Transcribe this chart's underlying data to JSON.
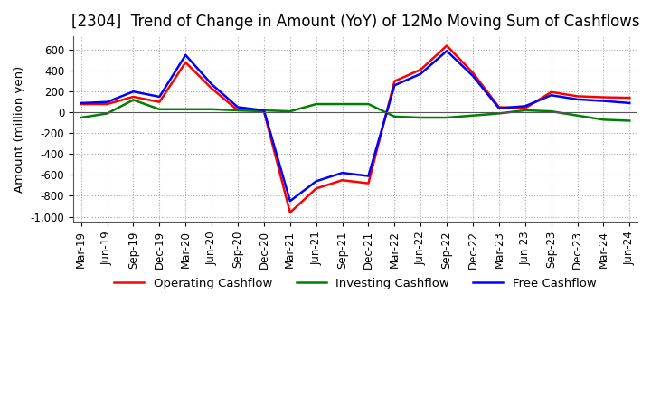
{
  "title": "[2304]  Trend of Change in Amount (YoY) of 12Mo Moving Sum of Cashflows",
  "ylabel": "Amount (million yen)",
  "xlabels": [
    "Mar-19",
    "Jun-19",
    "Sep-19",
    "Dec-19",
    "Mar-20",
    "Jun-20",
    "Sep-20",
    "Dec-20",
    "Mar-21",
    "Jun-21",
    "Sep-21",
    "Dec-21",
    "Mar-22",
    "Jun-22",
    "Sep-22",
    "Dec-22",
    "Mar-23",
    "Jun-23",
    "Sep-23",
    "Dec-23",
    "Mar-24",
    "Jun-24"
  ],
  "operating_cashflow": [
    80,
    80,
    150,
    100,
    480,
    230,
    20,
    10,
    -960,
    -730,
    -650,
    -680,
    300,
    410,
    640,
    380,
    50,
    40,
    195,
    155,
    145,
    140
  ],
  "investing_cashflow": [
    -50,
    -10,
    120,
    30,
    30,
    30,
    20,
    20,
    10,
    80,
    80,
    80,
    -40,
    -50,
    -50,
    -30,
    -10,
    20,
    10,
    -30,
    -70,
    -80
  ],
  "free_cashflow": [
    90,
    100,
    200,
    150,
    550,
    270,
    50,
    20,
    -850,
    -660,
    -580,
    -610,
    260,
    370,
    590,
    350,
    40,
    60,
    165,
    125,
    110,
    90
  ],
  "ylim": [
    -1050,
    730
  ],
  "yticks": [
    -1000,
    -800,
    -600,
    -400,
    -200,
    0,
    200,
    400,
    600
  ],
  "operating_color": "#ff0000",
  "investing_color": "#008000",
  "free_color": "#0000ff",
  "background_color": "#ffffff",
  "grid_color": "#aaaaaa",
  "title_fontsize": 12,
  "axis_fontsize": 8.5,
  "legend_fontsize": 9.5
}
